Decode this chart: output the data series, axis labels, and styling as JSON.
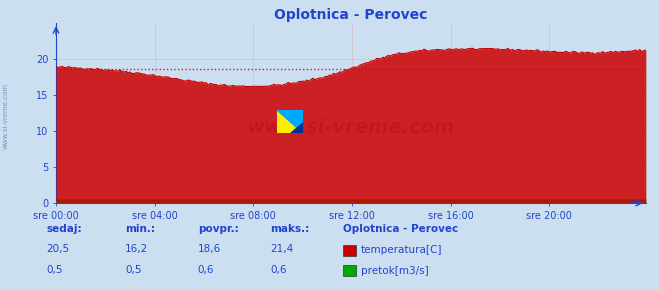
{
  "title": "Oplotnica - Perovec",
  "bg_color": "#ccdff0",
  "plot_bg_color": "#ccdff0",
  "grid_color_h": "#e8a0a0",
  "grid_color_v": "#e8a0a0",
  "xlabel_ticks": [
    "sre 00:00",
    "sre 04:00",
    "sre 08:00",
    "sre 12:00",
    "sre 16:00",
    "sre 20:00"
  ],
  "ylabel_ticks": [
    0,
    5,
    10,
    15,
    20
  ],
  "ylim": [
    0,
    25
  ],
  "xlim": [
    0,
    287
  ],
  "temp_color": "#cc0000",
  "temp_fill_color": "#cc0000",
  "flow_color": "#00aa00",
  "avg_color": "#cc0000",
  "avg_value": 18.6,
  "watermark": "www.si-vreme.com",
  "title_color": "#2244cc",
  "axis_color": "#2244cc",
  "tick_color": "#2244cc",
  "legend_title": "Oplotnica - Perovec",
  "legend_labels": [
    "temperatura[C]",
    "pretok[m3/s]"
  ],
  "legend_colors": [
    "#cc0000",
    "#00aa00"
  ],
  "table_headers": [
    "sedaj:",
    "min.:",
    "povpr.:",
    "maks.:"
  ],
  "table_temp": [
    "20,5",
    "16,2",
    "18,6",
    "21,4"
  ],
  "table_flow": [
    "0,5",
    "0,5",
    "0,6",
    "0,6"
  ],
  "table_color": "#2244cc",
  "figsize": [
    6.59,
    2.9
  ],
  "dpi": 100
}
